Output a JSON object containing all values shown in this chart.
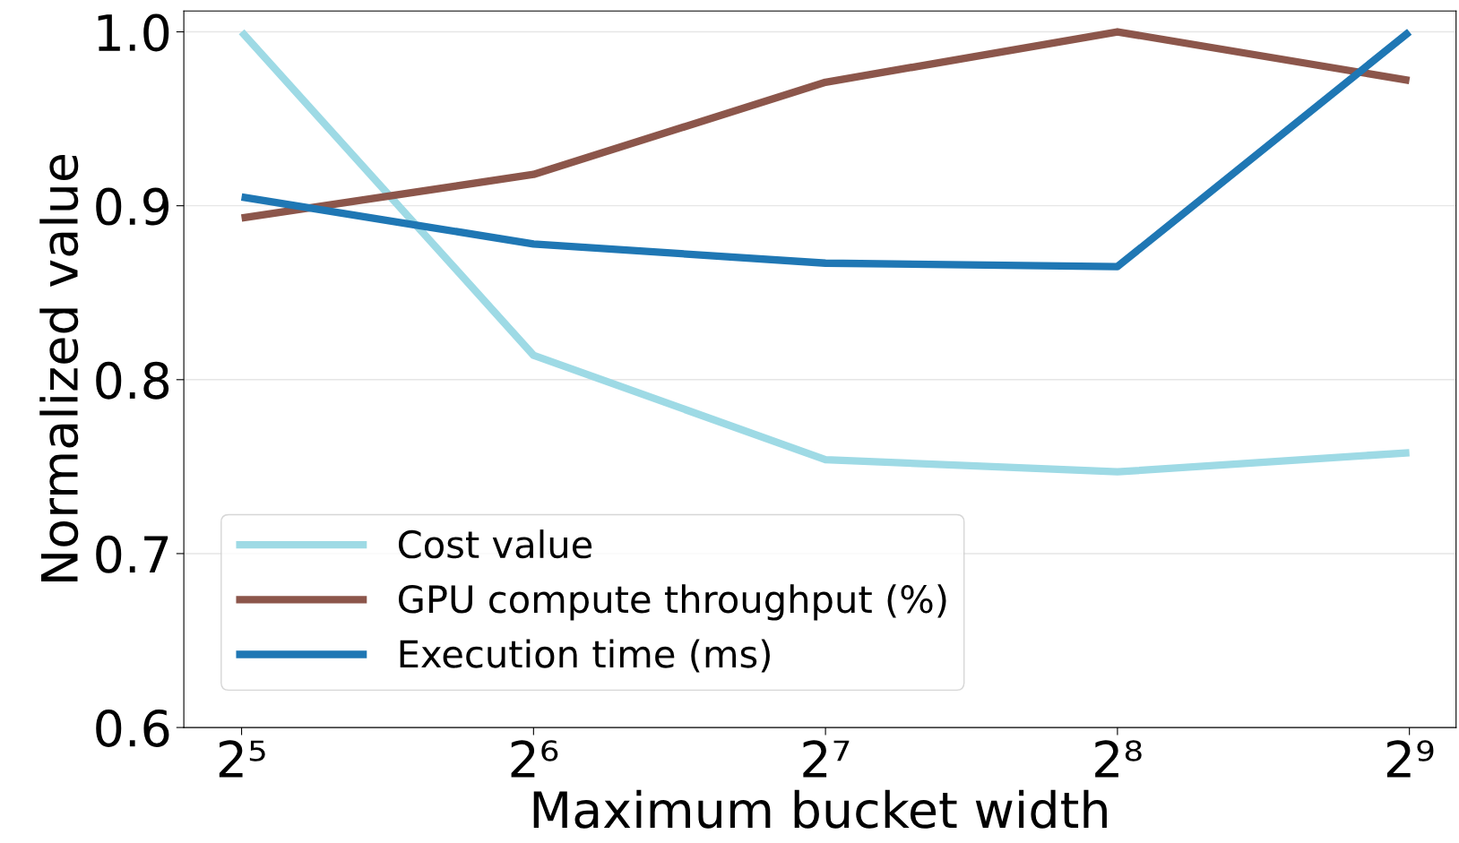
{
  "chart_data": {
    "type": "line",
    "xlabel": "Maximum bucket width",
    "ylabel": "Normalized value",
    "x": [
      32,
      64,
      128,
      256,
      512
    ],
    "log": "x",
    "xlim": [
      27.9,
      572
    ],
    "xticks": [
      {
        "value": 32,
        "label": "2⁵"
      },
      {
        "value": 64,
        "label": "2⁶"
      },
      {
        "value": 128,
        "label": "2⁷"
      },
      {
        "value": 256,
        "label": "2⁸"
      },
      {
        "value": 512,
        "label": "2⁹"
      }
    ],
    "ylim": [
      0.6,
      1.012
    ],
    "yticks": [
      {
        "value": 0.6,
        "label": "0.6"
      },
      {
        "value": 0.7,
        "label": "0.7"
      },
      {
        "value": 0.8,
        "label": "0.8"
      },
      {
        "value": 0.9,
        "label": "0.9"
      },
      {
        "value": 1.0,
        "label": "1.0"
      }
    ],
    "grid": "y",
    "legend": "bottom left",
    "line_style": "solid",
    "marker": "none",
    "series": [
      {
        "name": "Cost value",
        "color": "#9edae5",
        "values": [
          1.0,
          0.814,
          0.754,
          0.747,
          0.758
        ]
      },
      {
        "name": "GPU compute throughput (%)",
        "color": "#8c564b",
        "values": [
          0.893,
          0.918,
          0.971,
          1.0,
          0.972
        ]
      },
      {
        "name": "Execution time (ms)",
        "color": "#1f77b4",
        "values": [
          0.905,
          0.878,
          0.867,
          0.865,
          1.0
        ]
      }
    ]
  }
}
